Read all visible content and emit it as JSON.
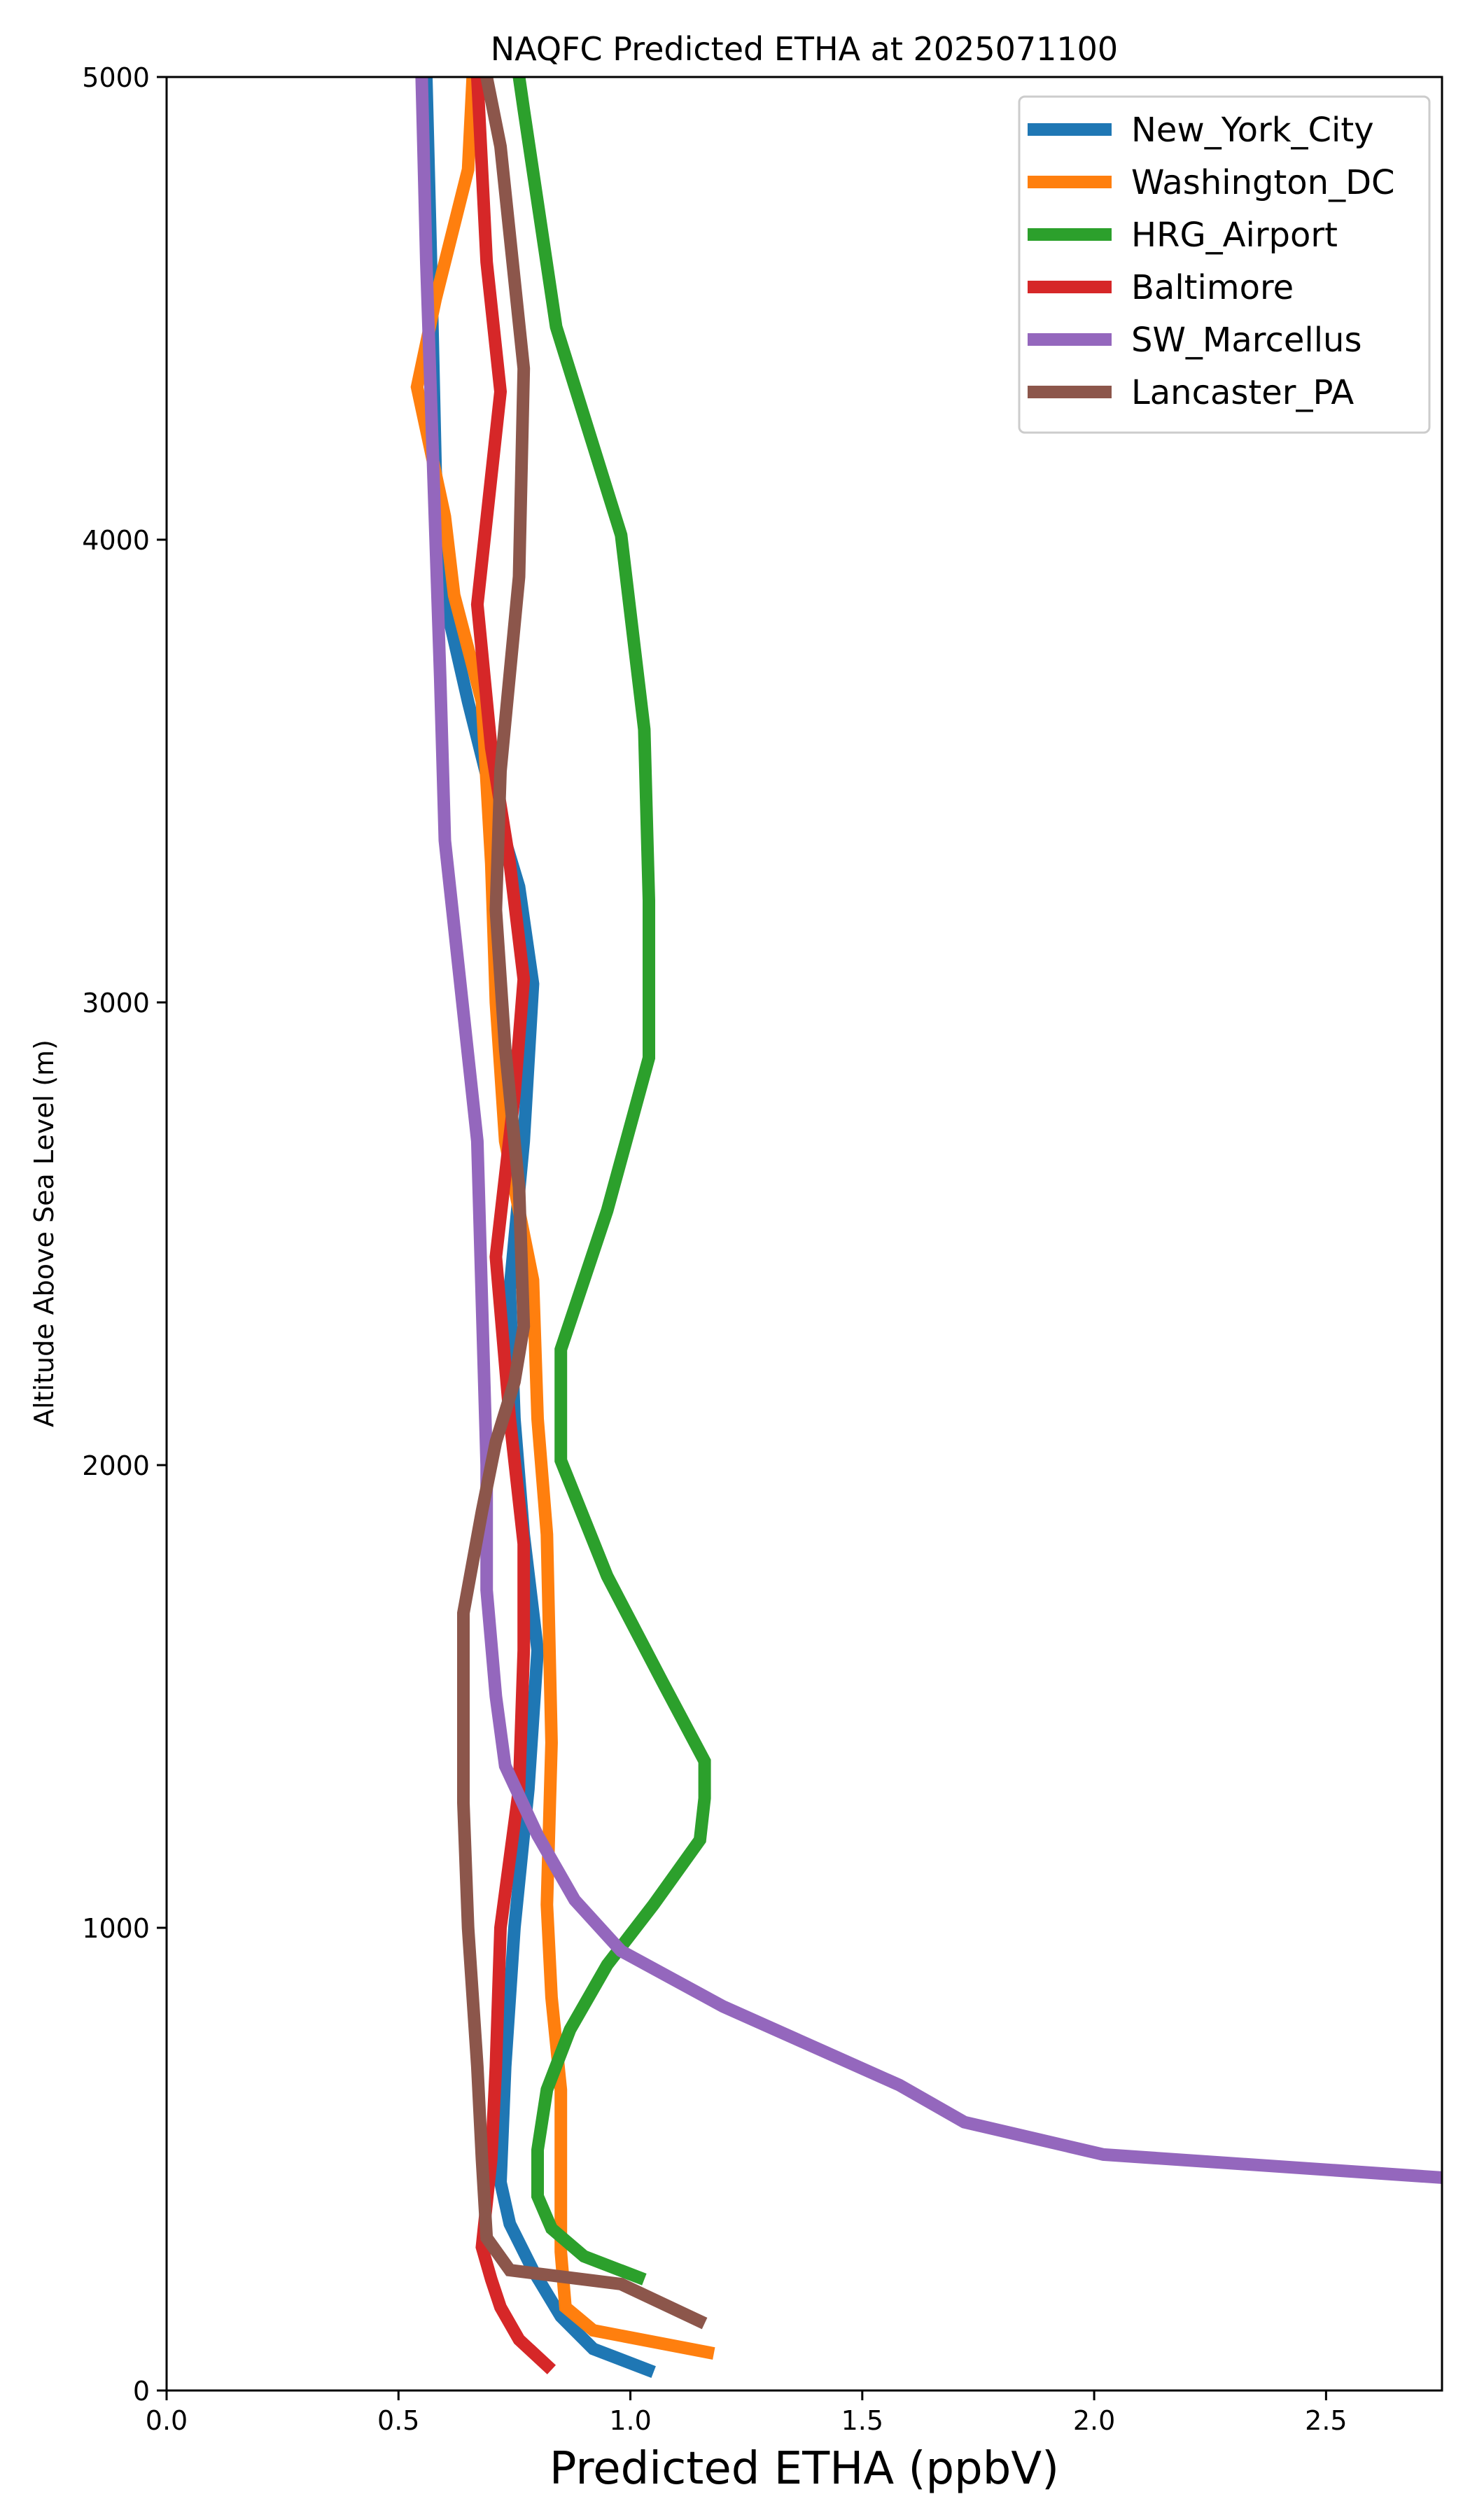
{
  "chart_data": {
    "type": "line",
    "title": "NAQFC Predicted ETHA at 2025071100",
    "xlabel": "Predicted ETHA (ppbV)",
    "ylabel": "Altitude Above Sea Level (m)",
    "xlim": [
      0.0,
      2.75
    ],
    "ylim": [
      0,
      5000
    ],
    "xticks": [
      "0.0",
      "0.5",
      "1.0",
      "1.5",
      "2.0",
      "2.5"
    ],
    "yticks": [
      "0",
      "1000",
      "2000",
      "3000",
      "4000",
      "5000"
    ],
    "grid": false,
    "legend_position": "top-right",
    "series": [
      {
        "name": "New_York_City",
        "color": "#1f77b4",
        "points": [
          [
            1.05,
            40
          ],
          [
            0.92,
            90
          ],
          [
            0.85,
            160
          ],
          [
            0.79,
            260
          ],
          [
            0.74,
            360
          ],
          [
            0.72,
            450
          ],
          [
            0.73,
            700
          ],
          [
            0.75,
            1000
          ],
          [
            0.78,
            1300
          ],
          [
            0.8,
            1600
          ],
          [
            0.77,
            1850
          ],
          [
            0.75,
            2100
          ],
          [
            0.74,
            2380
          ],
          [
            0.77,
            2700
          ],
          [
            0.79,
            3040
          ],
          [
            0.76,
            3250
          ],
          [
            0.7,
            3450
          ],
          [
            0.65,
            3650
          ],
          [
            0.6,
            3870
          ],
          [
            0.58,
            4150
          ],
          [
            0.57,
            4600
          ],
          [
            0.56,
            5000
          ]
        ]
      },
      {
        "name": "Washington_DC",
        "color": "#ff7f0e",
        "points": [
          [
            1.18,
            80
          ],
          [
            0.92,
            130
          ],
          [
            0.86,
            180
          ],
          [
            0.85,
            300
          ],
          [
            0.85,
            500
          ],
          [
            0.85,
            650
          ],
          [
            0.83,
            850
          ],
          [
            0.82,
            1050
          ],
          [
            0.83,
            1400
          ],
          [
            0.82,
            1850
          ],
          [
            0.8,
            2100
          ],
          [
            0.79,
            2400
          ],
          [
            0.73,
            2700
          ],
          [
            0.71,
            3000
          ],
          [
            0.7,
            3300
          ],
          [
            0.68,
            3650
          ],
          [
            0.62,
            3880
          ],
          [
            0.6,
            4050
          ],
          [
            0.54,
            4330
          ],
          [
            0.58,
            4520
          ],
          [
            0.65,
            4800
          ],
          [
            0.66,
            5000
          ]
        ]
      },
      {
        "name": "HRG_Airport",
        "color": "#2ca02c",
        "points": [
          [
            1.03,
            240
          ],
          [
            0.9,
            290
          ],
          [
            0.83,
            350
          ],
          [
            0.8,
            420
          ],
          [
            0.8,
            520
          ],
          [
            0.82,
            650
          ],
          [
            0.87,
            780
          ],
          [
            0.95,
            920
          ],
          [
            1.05,
            1050
          ],
          [
            1.15,
            1190
          ],
          [
            1.16,
            1280
          ],
          [
            1.16,
            1360
          ],
          [
            1.07,
            1530
          ],
          [
            0.95,
            1760
          ],
          [
            0.85,
            2010
          ],
          [
            0.85,
            2250
          ],
          [
            0.95,
            2550
          ],
          [
            1.04,
            2880
          ],
          [
            1.04,
            3220
          ],
          [
            1.03,
            3590
          ],
          [
            0.98,
            4010
          ],
          [
            0.84,
            4460
          ],
          [
            0.77,
            4930
          ],
          [
            0.76,
            5000
          ]
        ]
      },
      {
        "name": "Baltimore",
        "color": "#d62728",
        "points": [
          [
            0.83,
            45
          ],
          [
            0.76,
            110
          ],
          [
            0.72,
            180
          ],
          [
            0.7,
            240
          ],
          [
            0.68,
            310
          ],
          [
            0.7,
            500
          ],
          [
            0.71,
            700
          ],
          [
            0.72,
            1000
          ],
          [
            0.76,
            1300
          ],
          [
            0.77,
            1600
          ],
          [
            0.77,
            1830
          ],
          [
            0.74,
            2100
          ],
          [
            0.71,
            2450
          ],
          [
            0.75,
            2800
          ],
          [
            0.77,
            3050
          ],
          [
            0.74,
            3300
          ],
          [
            0.7,
            3550
          ],
          [
            0.67,
            3860
          ],
          [
            0.72,
            4320
          ],
          [
            0.69,
            4600
          ],
          [
            0.67,
            5000
          ]
        ]
      },
      {
        "name": "SW_Marcellus",
        "color": "#9467bd",
        "points": [
          [
            2.75,
            460
          ],
          [
            2.02,
            510
          ],
          [
            1.72,
            580
          ],
          [
            1.58,
            660
          ],
          [
            1.2,
            830
          ],
          [
            0.98,
            950
          ],
          [
            0.88,
            1060
          ],
          [
            0.8,
            1200
          ],
          [
            0.73,
            1350
          ],
          [
            0.71,
            1500
          ],
          [
            0.69,
            1730
          ],
          [
            0.69,
            2000
          ],
          [
            0.68,
            2350
          ],
          [
            0.67,
            2700
          ],
          [
            0.6,
            3350
          ],
          [
            0.59,
            3700
          ],
          [
            0.58,
            4000
          ],
          [
            0.56,
            4600
          ],
          [
            0.55,
            5000
          ]
        ]
      },
      {
        "name": "Lancaster_PA",
        "color": "#8c564b",
        "points": [
          [
            1.16,
            145
          ],
          [
            0.98,
            230
          ],
          [
            0.74,
            260
          ],
          [
            0.69,
            330
          ],
          [
            0.68,
            500
          ],
          [
            0.67,
            700
          ],
          [
            0.65,
            1000
          ],
          [
            0.64,
            1270
          ],
          [
            0.64,
            1440
          ],
          [
            0.64,
            1680
          ],
          [
            0.68,
            1900
          ],
          [
            0.71,
            2050
          ],
          [
            0.75,
            2180
          ],
          [
            0.77,
            2300
          ],
          [
            0.76,
            2600
          ],
          [
            0.73,
            2900
          ],
          [
            0.71,
            3200
          ],
          [
            0.72,
            3500
          ],
          [
            0.76,
            3920
          ],
          [
            0.77,
            4370
          ],
          [
            0.72,
            4850
          ],
          [
            0.69,
            5000
          ]
        ]
      }
    ]
  }
}
